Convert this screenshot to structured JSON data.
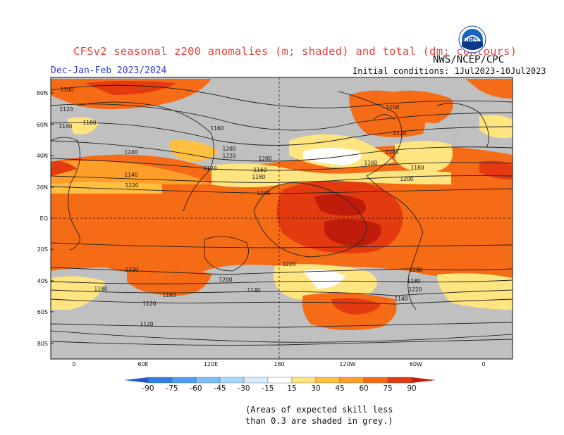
{
  "header": {
    "title": "CFSv2 seasonal z200 anomalies (m; shaded) and total (dm; contours)",
    "agency": "NWS/NCEP/CPC",
    "season": "Dec-Jan-Feb 2023/2024",
    "initial_conditions": "Initial conditions: 1Jul2023-10Jul2023",
    "logo_text": "NOAA"
  },
  "map": {
    "lat_labels": [
      "80N",
      "60N",
      "40N",
      "20N",
      "EQ",
      "20S",
      "40S",
      "60S",
      "80S"
    ],
    "lon_labels": [
      "0",
      "60E",
      "120E",
      "180",
      "120W",
      "60W",
      "0"
    ],
    "contour_labels": [
      "1100",
      "1120",
      "1140",
      "1160",
      "1180",
      "1200",
      "1220",
      "1240",
      "1120",
      "1140",
      "1160",
      "1180",
      "1200",
      "1220",
      "1240",
      "1100",
      "1120",
      "1140",
      "1160",
      "1180",
      "1200",
      "1220",
      "1220",
      "1200",
      "1180",
      "1160",
      "1140",
      "1120",
      "1180",
      "1200",
      "1220",
      "1140",
      "1120"
    ],
    "colors": {
      "grey": "#c0c0c0",
      "pos_15_30": "#ffe580",
      "pos_30_45": "#ffc041",
      "pos_45_60": "#ff9f2a",
      "pos_60_75": "#f56b16",
      "pos_75_90": "#e33b0f",
      "pos_90": "#c01c0c"
    }
  },
  "colorbar": {
    "labels": [
      "-90",
      "-75",
      "-60",
      "-45",
      "-30",
      "-15",
      "15",
      "30",
      "45",
      "60",
      "75",
      "90"
    ],
    "colors": [
      "#1f59c9",
      "#2f7ee6",
      "#4e9ef5",
      "#7cbcf7",
      "#a8d8fa",
      "#d6eefc",
      "#ffffff",
      "#ffe580",
      "#ffc041",
      "#ff9f2a",
      "#f56b16",
      "#e33b0f",
      "#c01c0c"
    ]
  },
  "note": {
    "line1": "(Areas of expected skill less",
    "line2": "than 0.3 are shaded in grey.)"
  }
}
